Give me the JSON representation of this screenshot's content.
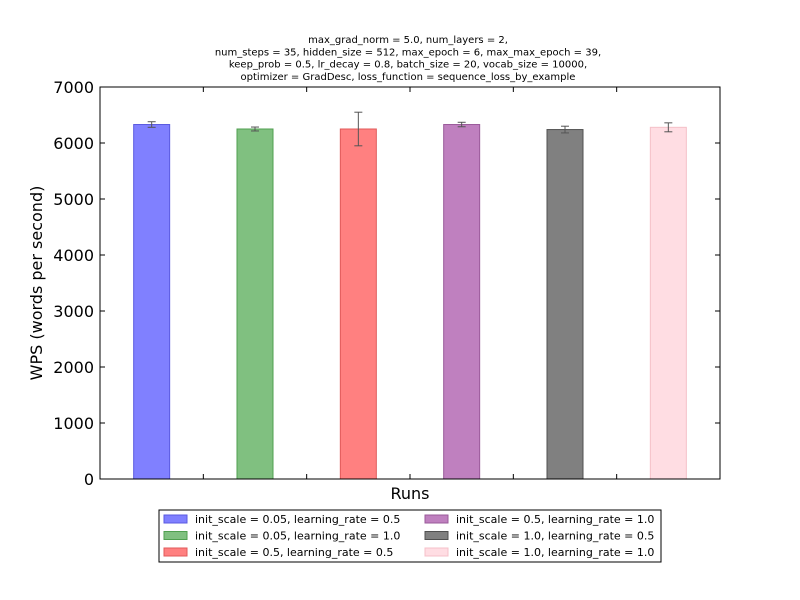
{
  "chart_data": {
    "type": "bar",
    "title_lines": [
      "max_grad_norm = 5.0, num_layers = 2,",
      "num_steps = 35, hidden_size = 512, max_epoch = 6, max_max_epoch = 39,",
      "keep_prob = 0.5, lr_decay = 0.8, batch_size = 20, vocab_size = 10000,",
      "optimizer = GradDesc, loss_function = sequence_loss_by_example"
    ],
    "xlabel": "Runs",
    "ylabel": "WPS (words per second)",
    "ylim": [
      0,
      7000
    ],
    "yticks": [
      0,
      1000,
      2000,
      3000,
      4000,
      5000,
      6000,
      7000
    ],
    "legend_position": "below",
    "series": [
      {
        "name": "init_scale = 0.05, learning_rate = 0.5",
        "value": 6330,
        "error": 50,
        "color": "#8080ff",
        "edge": "#5a5ae0"
      },
      {
        "name": "init_scale = 0.05, learning_rate = 1.0",
        "value": 6250,
        "error": 35,
        "color": "#80c080",
        "edge": "#4f9f4f"
      },
      {
        "name": "init_scale = 0.5, learning_rate = 0.5",
        "value": 6250,
        "error": 300,
        "color": "#ff8080",
        "edge": "#e05a5a"
      },
      {
        "name": "init_scale = 0.5, learning_rate = 1.0",
        "value": 6330,
        "error": 40,
        "color": "#bf80bf",
        "edge": "#9a5a9a"
      },
      {
        "name": "init_scale = 1.0, learning_rate = 0.5",
        "value": 6240,
        "error": 60,
        "color": "#808080",
        "edge": "#505050"
      },
      {
        "name": "init_scale = 1.0, learning_rate = 1.0",
        "value": 6280,
        "error": 80,
        "color": "#ffdde3",
        "edge": "#f5c0c8"
      }
    ]
  }
}
